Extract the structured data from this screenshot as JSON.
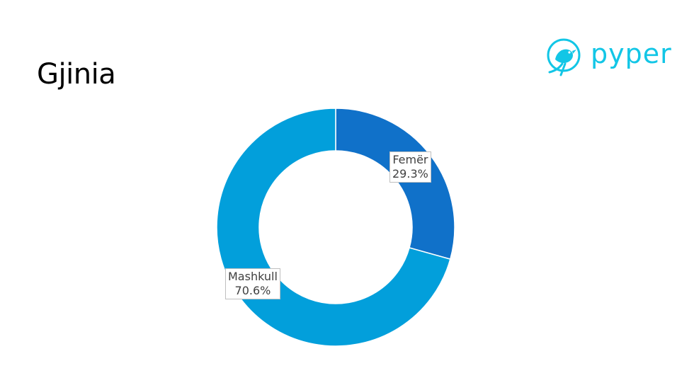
{
  "slide": {
    "title": "Gjinia"
  },
  "logo": {
    "text": "pyper",
    "color": "#12C6E6",
    "icon": "bird-icon"
  },
  "chart_data": {
    "type": "pie",
    "style": "donut",
    "categories": [
      "Femër",
      "Mashkull"
    ],
    "values": [
      29.3,
      70.6
    ],
    "colors": [
      "#1071C9",
      "#029FDB"
    ],
    "data_labels": [
      {
        "category": "Femër",
        "value": "29.3%"
      },
      {
        "category": "Mashkull",
        "value": "70.6%"
      }
    ]
  }
}
